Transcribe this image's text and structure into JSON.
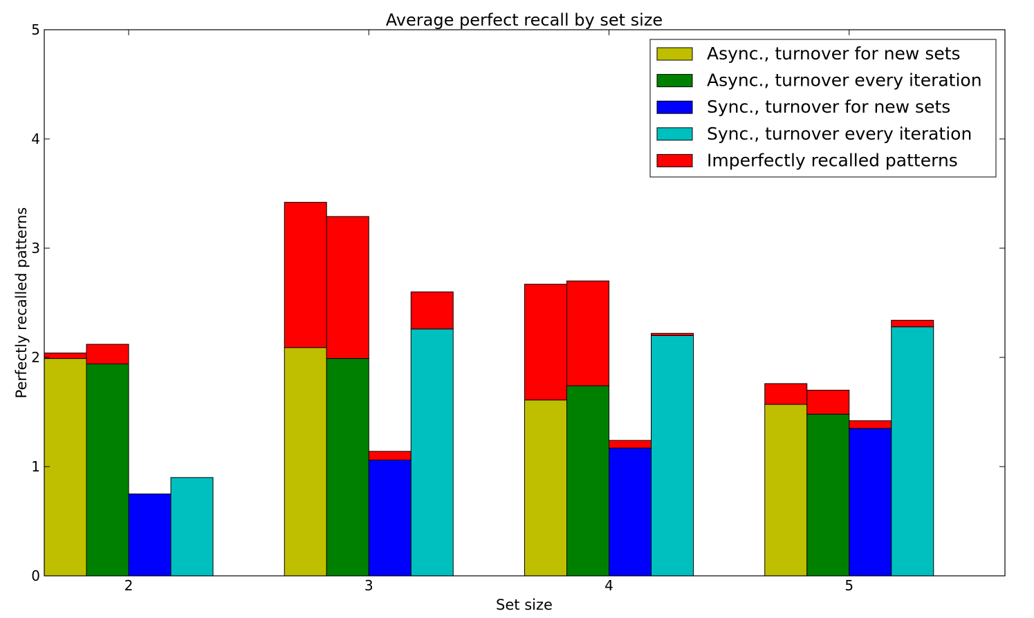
{
  "chart_data": {
    "type": "bar",
    "title": "Average perfect recall by set size",
    "xlabel": "Set size",
    "ylabel": "Perfectly recalled patterns",
    "categories": [
      "2",
      "3",
      "4",
      "5"
    ],
    "ylim": [
      0,
      5
    ],
    "yticks": [
      "0",
      "1",
      "2",
      "3",
      "4",
      "5"
    ],
    "grid": false,
    "legend_position": "top-right",
    "stacked": true,
    "series": [
      {
        "name": "Async., turnover for new sets",
        "color": "#bfbf00",
        "perfect": [
          1.99,
          2.09,
          1.61,
          1.57
        ],
        "imperfect": [
          0.05,
          1.33,
          1.06,
          0.19
        ]
      },
      {
        "name": "Async., turnover every iteration",
        "color": "#008000",
        "perfect": [
          1.94,
          1.99,
          1.74,
          1.48
        ],
        "imperfect": [
          0.18,
          1.3,
          0.96,
          0.22
        ]
      },
      {
        "name": "Sync., turnover for new sets",
        "color": "#0000ff",
        "perfect": [
          0.75,
          1.06,
          1.17,
          1.35
        ],
        "imperfect": [
          0.0,
          0.08,
          0.07,
          0.07
        ]
      },
      {
        "name": "Sync., turnover every iteration",
        "color": "#00bfbf",
        "perfect": [
          0.9,
          2.26,
          2.2,
          2.28
        ],
        "imperfect": [
          0.0,
          0.34,
          0.02,
          0.06
        ]
      }
    ],
    "imperfect_series": {
      "name": "Imperfectly recalled patterns",
      "color": "#ff0000"
    }
  }
}
